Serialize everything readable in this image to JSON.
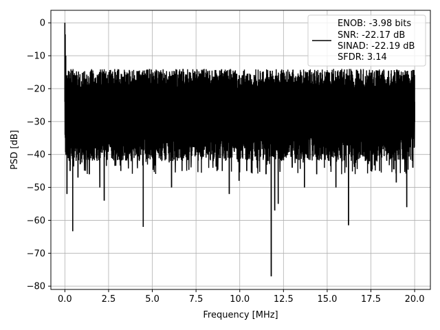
{
  "chart_data": {
    "type": "line",
    "title": "",
    "xlabel": "Frequency [MHz]",
    "ylabel": "PSD [dB]",
    "xlim": [
      -0.8,
      20.9
    ],
    "ylim": [
      -81,
      3.8
    ],
    "xticks": [
      0.0,
      2.5,
      5.0,
      7.5,
      10.0,
      12.5,
      15.0,
      17.5,
      20.0
    ],
    "xtick_labels": [
      "0.0",
      "2.5",
      "5.0",
      "7.5",
      "10.0",
      "12.5",
      "15.0",
      "17.5",
      "20.0"
    ],
    "yticks": [
      0,
      -10,
      -20,
      -30,
      -40,
      -50,
      -60,
      -70,
      -80
    ],
    "ytick_labels": [
      "0",
      "−10",
      "−20",
      "−30",
      "−40",
      "−50",
      "−60",
      "−70",
      "−80"
    ],
    "grid": true,
    "legend_position": "top-right",
    "legend": {
      "lines": [
        "ENOB: -3.98 bits",
        "SNR: -22.17 dB",
        "SINAD: -22.19 dB",
        "SFDR: 3.14"
      ]
    },
    "series": [
      {
        "color": "#000000",
        "noise_band": {
          "upper_dB": -14,
          "median_dB": -24,
          "lower_dB": -38
        },
        "x": [
          0.0,
          0.02,
          0.05,
          0.08,
          0.12,
          0.2,
          0.3,
          0.35,
          0.45,
          0.6,
          0.75,
          1.2,
          1.4,
          2.0,
          2.25,
          2.6,
          3.2,
          4.48,
          5.1,
          6.1,
          6.7,
          7.5,
          8.7,
          9.0,
          9.4,
          9.96,
          10.4,
          11.0,
          11.5,
          11.8,
          12.0,
          12.2,
          13.0,
          13.7,
          14.4,
          15.5,
          16.22,
          17.5,
          18.0,
          18.95,
          19.55,
          19.9,
          20.0
        ],
        "y": [
          0.0,
          -3.5,
          -10.0,
          -16.0,
          -52.0,
          -18.0,
          -45.0,
          -30.0,
          -63.3,
          -18.0,
          -47.0,
          -17.0,
          -46.0,
          -50.0,
          -54.0,
          -16.0,
          -45.0,
          -62.0,
          -44.0,
          -50.0,
          -45.0,
          -17.0,
          -45.0,
          -45.0,
          -52.0,
          -48.0,
          -45.0,
          -44.0,
          -46.0,
          -77.0,
          -57.0,
          -55.0,
          -44.0,
          -50.0,
          -46.0,
          -50.0,
          -61.5,
          -45.0,
          -45.0,
          -48.5,
          -56.0,
          -44.0,
          -30.0
        ]
      }
    ]
  }
}
